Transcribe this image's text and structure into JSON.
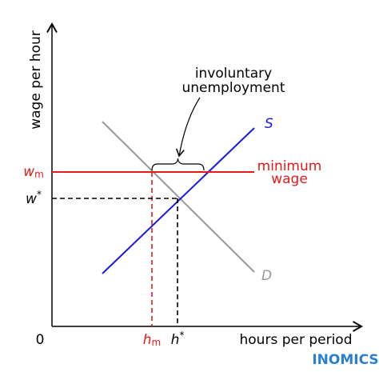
{
  "axes": {
    "y_label": "wage per hour",
    "x_label": "hours per period",
    "origin": "0"
  },
  "curves": {
    "supply": "S",
    "demand": "D"
  },
  "minimum_wage": {
    "label_lines": [
      "minimum",
      "wage"
    ],
    "symbol": {
      "base": "w",
      "sub": "m"
    },
    "quantity": {
      "base": "h",
      "sub": "m"
    }
  },
  "equilibrium": {
    "wage": {
      "base": "w",
      "sup": "*"
    },
    "quantity": {
      "base": "h",
      "sup": "*"
    }
  },
  "annotation": {
    "lines": [
      "involuntary",
      "unemployment"
    ]
  },
  "brand": "INOMICS"
}
